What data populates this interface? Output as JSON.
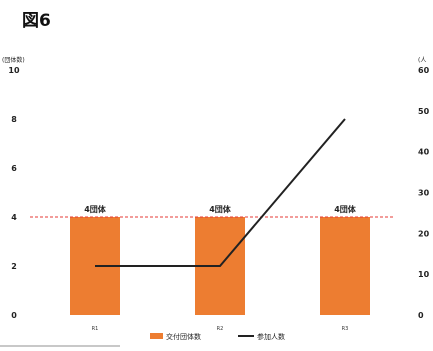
{
  "figure_label": "図6",
  "chart_data": {
    "type": "bar",
    "categories": [
      "R1",
      "R2",
      "R3"
    ],
    "series": [
      {
        "name": "交付団体数",
        "type": "bar",
        "axis": "left",
        "values": [
          4,
          4,
          4
        ],
        "color": "#ed7d31"
      },
      {
        "name": "参加人数",
        "type": "line",
        "axis": "right",
        "values": [
          12,
          12,
          48
        ],
        "color": "#222222"
      }
    ],
    "data_labels": [
      "4団体",
      "4団体",
      "4団体"
    ],
    "reference_line": {
      "value": 4,
      "axis": "left",
      "color": "#e53935",
      "style": "dashed"
    },
    "y_left": {
      "unit_label": "(団体数)",
      "ticks": [
        "0",
        "2",
        "4",
        "6",
        "8",
        "10"
      ],
      "ylim": [
        0,
        10
      ]
    },
    "y_right": {
      "unit_label": "(人",
      "ticks": [
        "0",
        "10",
        "20",
        "30",
        "40",
        "50",
        "60"
      ],
      "ylim": [
        0,
        60
      ]
    },
    "legend": {
      "position": "bottom-center",
      "entries": [
        "交付団体数",
        "参加人数"
      ]
    },
    "grid": false
  }
}
